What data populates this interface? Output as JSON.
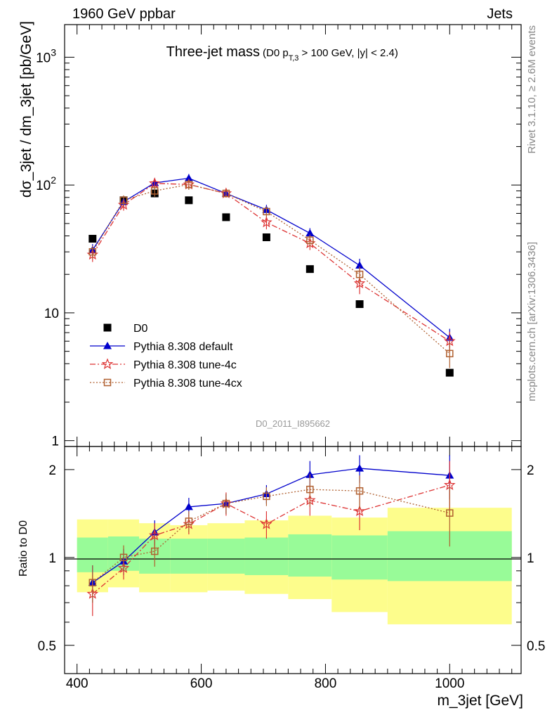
{
  "header": {
    "left": "1960 GeV ppbar",
    "right": "Jets",
    "side_rivet": "Rivet 3.1.10, ≥ 2.6M events",
    "side_mcplots": "mcplots.cern.ch [arXiv:1306.3436]"
  },
  "chart_data": [
    {
      "type": "scatter",
      "title": "Three-jet mass",
      "subtitle": "(D0 p_T,3 > 100 GeV, |y| < 2.4)",
      "ylabel": "dσ_3jet / dm_3jet [pb/GeV]",
      "xlabel": "",
      "yscale": "log",
      "ylim": [
        0.9,
        1800
      ],
      "xlim": [
        380,
        1115
      ],
      "y_ticks": [
        "1",
        "10",
        "10^2",
        "10^3"
      ],
      "watermark": "D0_2011_I895662",
      "legend_position": "lower-left",
      "x": [
        425,
        475,
        525,
        580,
        640,
        705,
        775,
        855,
        1000
      ],
      "series": [
        {
          "name": "D0",
          "color": "#000000",
          "marker": "square",
          "values": [
            38,
            76,
            86,
            76,
            56,
            39,
            22,
            11.7,
            3.4
          ]
        },
        {
          "name": "Pythia 8.308 default",
          "color": "#0000cc",
          "marker": "triangle",
          "line": "solid",
          "values": [
            31,
            74,
            104,
            113,
            86,
            64,
            42,
            23.5,
            6.4
          ],
          "errors": [
            3.5,
            7,
            9,
            9,
            6,
            6,
            4,
            3,
            1.1
          ]
        },
        {
          "name": "Pythia 8.308 tune-4c",
          "color": "#dd3333",
          "marker": "star",
          "line": "dashdot",
          "values": [
            28.5,
            70,
            103,
            101,
            86,
            51,
            35,
            17,
            6.0
          ],
          "errors": [
            3.5,
            7,
            9,
            9,
            6,
            6,
            4,
            3,
            1.1
          ]
        },
        {
          "name": "Pythia 8.308 tune-4cx",
          "color": "#b06030",
          "marker": "open-square",
          "line": "dotted",
          "values": [
            30,
            76,
            90,
            101,
            86,
            62,
            37,
            20,
            4.8
          ],
          "errors": [
            3.5,
            7,
            9,
            9,
            6,
            6,
            4,
            3,
            1.1
          ]
        }
      ]
    },
    {
      "type": "scatter",
      "ylabel": "Ratio to D0",
      "xlabel": "m_3jet [GeV]",
      "yscale": "log",
      "ylim": [
        0.4,
        2.4
      ],
      "xlim": [
        380,
        1115
      ],
      "x_ticks": [
        400,
        600,
        800,
        1000
      ],
      "y_ticks": [
        0.5,
        1,
        2
      ],
      "bands": {
        "edges": [
          400,
          450,
          500,
          550,
          610,
          670,
          740,
          810,
          900,
          1100
        ],
        "yellow": [
          [
            0.76,
            1.35
          ],
          [
            0.79,
            1.35
          ],
          [
            0.76,
            1.31
          ],
          [
            0.76,
            1.29
          ],
          [
            0.77,
            1.31
          ],
          [
            0.75,
            1.34
          ],
          [
            0.72,
            1.39
          ],
          [
            0.65,
            1.37
          ],
          [
            0.59,
            1.48
          ]
        ],
        "green": [
          [
            0.89,
            1.17
          ],
          [
            0.9,
            1.18
          ],
          [
            0.88,
            1.16
          ],
          [
            0.88,
            1.16
          ],
          [
            0.88,
            1.16
          ],
          [
            0.87,
            1.17
          ],
          [
            0.86,
            1.2
          ],
          [
            0.84,
            1.19
          ],
          [
            0.83,
            1.23
          ]
        ],
        "yellow_color": "#fdfd8c",
        "green_color": "#98fb98"
      },
      "x": [
        425,
        475,
        525,
        580,
        640,
        705,
        775,
        855,
        1000
      ],
      "series": [
        {
          "name": "Pythia 8.308 default",
          "color": "#0000cc",
          "values": [
            0.82,
            0.97,
            1.22,
            1.49,
            1.53,
            1.65,
            1.92,
            2.02,
            1.91
          ],
          "errors": [
            0.12,
            0.1,
            0.12,
            0.11,
            0.12,
            0.12,
            0.22,
            0.22,
            0.33
          ]
        },
        {
          "name": "Pythia 8.308 tune-4c",
          "color": "#dd3333",
          "values": [
            0.75,
            0.92,
            1.19,
            1.3,
            1.53,
            1.3,
            1.57,
            1.44,
            1.77
          ],
          "errors": [
            0.12,
            0.08,
            0.12,
            0.1,
            0.14,
            0.14,
            0.18,
            0.2,
            0.37
          ]
        },
        {
          "name": "Pythia 8.308 tune-4cx",
          "color": "#b06030",
          "values": [
            0.82,
            1.0,
            1.05,
            1.33,
            1.53,
            1.62,
            1.71,
            1.69,
            1.42
          ],
          "errors": [
            0.12,
            0.1,
            0.12,
            0.11,
            0.12,
            0.12,
            0.22,
            0.22,
            0.33
          ]
        }
      ]
    }
  ]
}
